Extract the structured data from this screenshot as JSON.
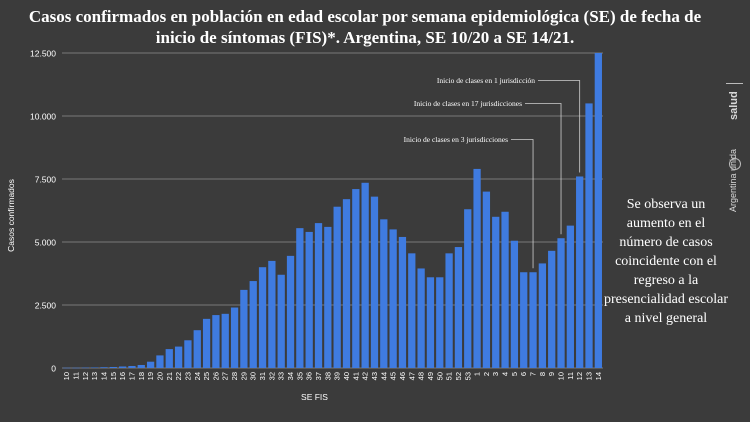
{
  "header": {
    "title": "Casos confirmados en población en edad escolar por semana epidemiológica (SE) de fecha de inicio de síntomas (FIS)*. Argentina, SE 10/20 a SE 14/21."
  },
  "side_note": "Se observa un aumento en el número de casos coincidente con el regreso a la presencialidad escolar a nivel general",
  "brand": {
    "salud": "salud",
    "argentina": "Argentina unida"
  },
  "colors": {
    "bar": "#3f7be0",
    "background": "#3b3b3b",
    "grid": "#7a7a7a",
    "text": "#ffffff"
  },
  "chart_data": {
    "type": "bar",
    "xlabel": "SE FIS",
    "ylabel": "Casos confirmados",
    "ylim": [
      0,
      12500
    ],
    "yticks": [
      0,
      2500,
      5000,
      7500,
      10000,
      12500
    ],
    "ytick_labels": [
      "0",
      "2.500",
      "5.000",
      "7.500",
      "10.000",
      "12.500"
    ],
    "grid": true,
    "categories": [
      "10",
      "11",
      "12",
      "13",
      "14",
      "15",
      "16",
      "17",
      "18",
      "19",
      "20",
      "21",
      "22",
      "23",
      "24",
      "25",
      "26",
      "27",
      "28",
      "29",
      "30",
      "31",
      "32",
      "33",
      "34",
      "35",
      "36",
      "37",
      "38",
      "39",
      "40",
      "41",
      "42",
      "43",
      "44",
      "45",
      "46",
      "47",
      "48",
      "49",
      "50",
      "51",
      "52",
      "53",
      "1",
      "2",
      "3",
      "4",
      "5",
      "6",
      "7",
      "8",
      "9",
      "10",
      "11",
      "12",
      "13",
      "14"
    ],
    "values": [
      10,
      10,
      15,
      20,
      30,
      40,
      60,
      80,
      120,
      250,
      500,
      750,
      850,
      1100,
      1500,
      1950,
      2100,
      2150,
      2400,
      3100,
      3450,
      4000,
      4250,
      3700,
      4450,
      5550,
      5400,
      5750,
      5600,
      6400,
      6700,
      7100,
      7350,
      6800,
      5900,
      5500,
      5200,
      4550,
      3950,
      3600,
      3600,
      4550,
      4800,
      6300,
      7900,
      7000,
      6000,
      6200,
      5050,
      3800,
      3800,
      4150,
      4650,
      5150,
      5650,
      7600,
      10500,
      12500
    ],
    "annotations": [
      {
        "text": "Inicio de clases en 1 jurisdicción",
        "x_category_index": 55
      },
      {
        "text": "Inicio de clases en 17 jurisdicciones",
        "x_category_index": 53
      },
      {
        "text": "Inicio de clases en 3 jurisdicciones",
        "x_category_index": 50
      }
    ]
  }
}
